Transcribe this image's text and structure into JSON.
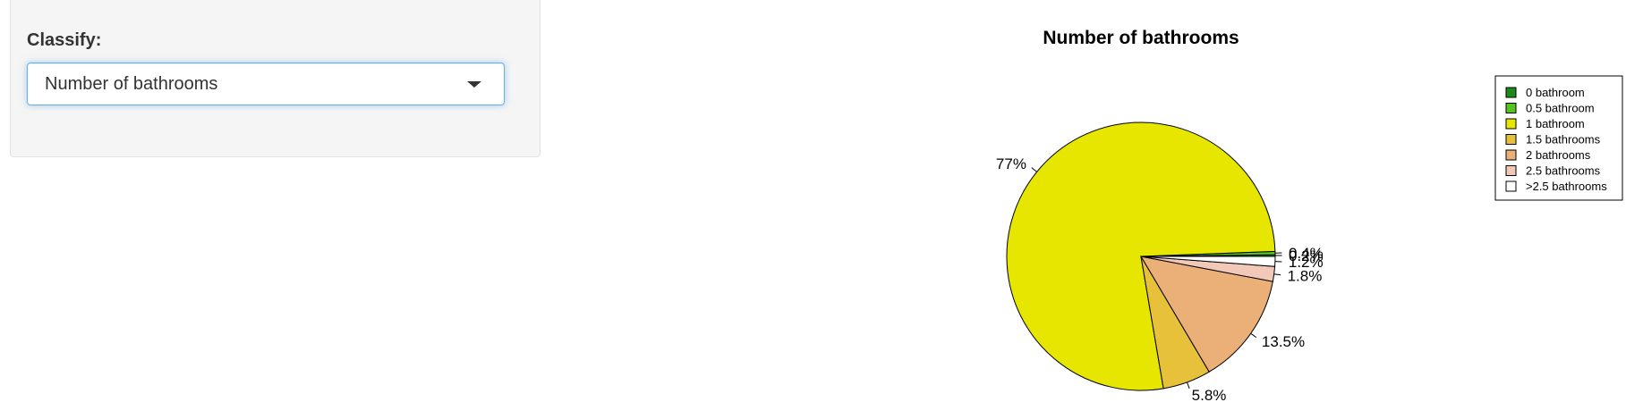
{
  "sidebar": {
    "label": "Classify:",
    "select": {
      "value": "Number of bathrooms"
    }
  },
  "chart_data": {
    "type": "pie",
    "title": "Number of bathrooms",
    "legend_position": "top-right",
    "slices": [
      {
        "label": "0 bathroom",
        "value": 0.2,
        "value_label": "0.2%",
        "color": "#1B8A1B"
      },
      {
        "label": "0.5 bathroom",
        "value": 0.4,
        "value_label": "0.4%",
        "color": "#55C41E"
      },
      {
        "label": "1 bathroom",
        "value": 77.0,
        "value_label": "77%",
        "color": "#E6E600"
      },
      {
        "label": "1.5 bathrooms",
        "value": 5.8,
        "value_label": "5.8%",
        "color": "#E8C13A"
      },
      {
        "label": "2 bathrooms",
        "value": 13.5,
        "value_label": "13.5%",
        "color": "#EBB077"
      },
      {
        "label": "2.5 bathrooms",
        "value": 1.8,
        "value_label": "1.8%",
        "color": "#F2C9B8"
      },
      {
        "label": ">2.5 bathrooms",
        "value": 1.2,
        "value_label": "1.2%",
        "color": "#FFFFFF"
      }
    ]
  }
}
